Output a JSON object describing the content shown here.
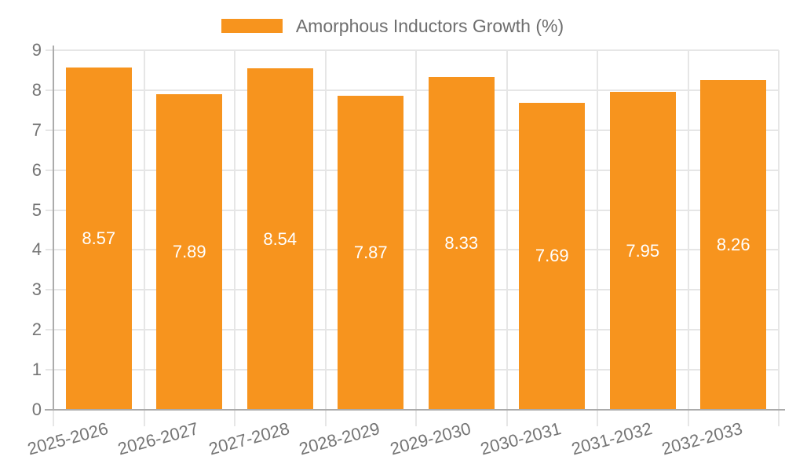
{
  "chart_data": {
    "type": "bar",
    "title": "",
    "legend": {
      "label": "Amorphous Inductors Growth (%)",
      "position": "top-center"
    },
    "categories": [
      "2025-2026",
      "2026-2027",
      "2027-2028",
      "2028-2029",
      "2029-2030",
      "2030-2031",
      "2031-2032",
      "2032-2033"
    ],
    "values": [
      8.57,
      7.89,
      8.54,
      7.87,
      8.33,
      7.69,
      7.95,
      8.26
    ],
    "value_labels": [
      "8.57",
      "7.89",
      "8.54",
      "7.87",
      "8.33",
      "7.69",
      "7.95",
      "8.26"
    ],
    "xlabel": "",
    "ylabel": "",
    "ylim": [
      0,
      9
    ],
    "yticks": [
      "0",
      "1",
      "2",
      "3",
      "4",
      "5",
      "6",
      "7",
      "8",
      "9"
    ],
    "grid": true,
    "value_label_position": "inside-middle",
    "x_label_rotation_deg": -15,
    "colors": {
      "bar": "#F7941E",
      "value_label": "#FFFFFF",
      "axis_label": "#757575",
      "legend_label": "#6E6E6E",
      "gridline": "#E6E6E6",
      "axis_line": "#ABABAB",
      "background": "#FFFFFF"
    }
  }
}
